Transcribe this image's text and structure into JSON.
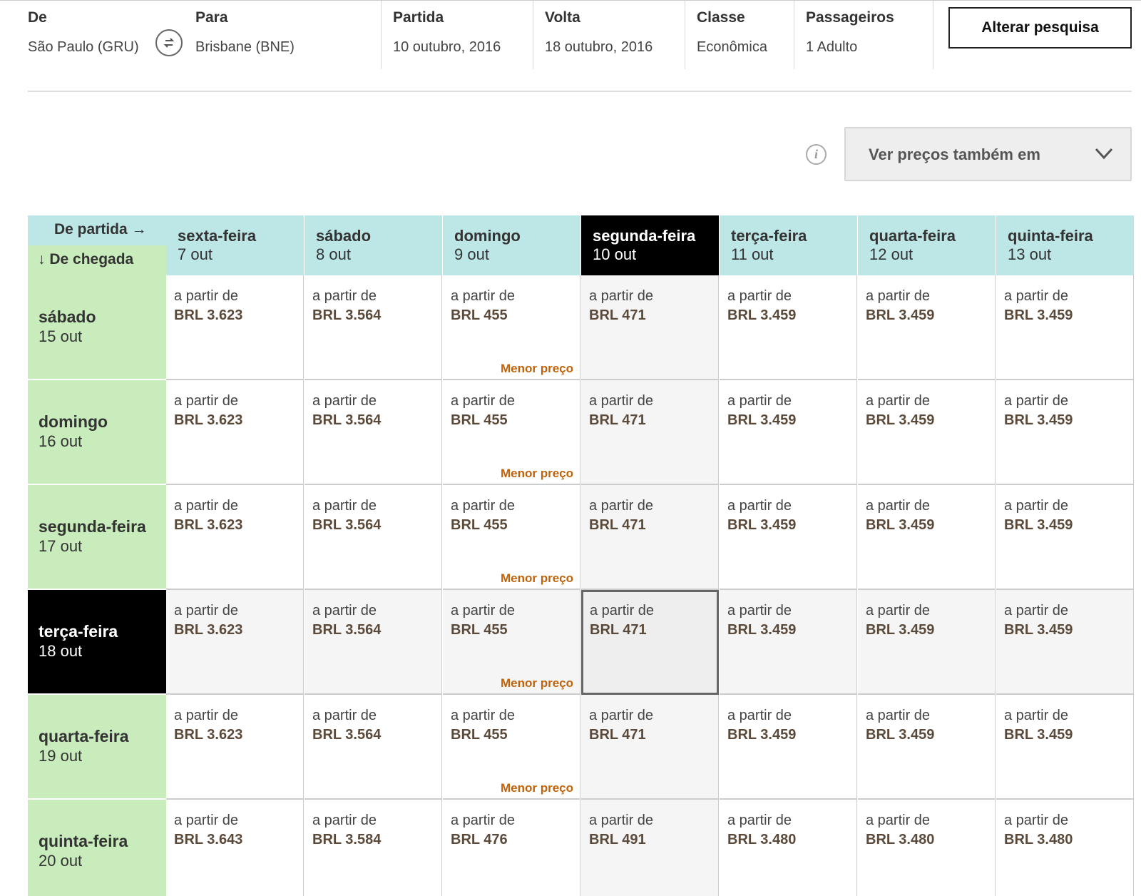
{
  "search": {
    "from_label": "De",
    "from_value": "São Paulo (GRU)",
    "to_label": "Para",
    "to_value": "Brisbane (BNE)",
    "departure_label": "Partida",
    "departure_value": "10 outubro, 2016",
    "return_label": "Volta",
    "return_value": "18 outubro, 2016",
    "class_label": "Classe",
    "class_value": "Econômica",
    "passengers_label": "Passageiros",
    "passengers_value": "1 Adulto",
    "change_button": "Alterar pesquisa"
  },
  "currency": {
    "select_label": "Ver preços também em",
    "info_icon": "info-icon",
    "chevron_icon": "chevron-down-icon"
  },
  "grid": {
    "corner_departure": "De partida →",
    "corner_arrival": "↓ De chegada",
    "price_prefix": "a partir de",
    "lowest_label": "Menor preço",
    "departures": [
      {
        "day": "sexta-feira",
        "date": "7 out"
      },
      {
        "day": "sábado",
        "date": "8 out"
      },
      {
        "day": "domingo",
        "date": "9 out"
      },
      {
        "day": "segunda-feira",
        "date": "10 out",
        "selected": true
      },
      {
        "day": "terça-feira",
        "date": "11 out"
      },
      {
        "day": "quarta-feira",
        "date": "12 out"
      },
      {
        "day": "quinta-feira",
        "date": "13 out"
      }
    ],
    "returns": [
      {
        "day": "sábado",
        "date": "15 out",
        "prices": [
          "BRL 3.623",
          "BRL 3.564",
          "BRL 455",
          "BRL 471",
          "BRL 3.459",
          "BRL 3.459",
          "BRL 3.459"
        ],
        "lowest_col": 2
      },
      {
        "day": "domingo",
        "date": "16 out",
        "prices": [
          "BRL 3.623",
          "BRL 3.564",
          "BRL 455",
          "BRL 471",
          "BRL 3.459",
          "BRL 3.459",
          "BRL 3.459"
        ],
        "lowest_col": 2
      },
      {
        "day": "segunda-feira",
        "date": "17 out",
        "prices": [
          "BRL 3.623",
          "BRL 3.564",
          "BRL 455",
          "BRL 471",
          "BRL 3.459",
          "BRL 3.459",
          "BRL 3.459"
        ],
        "lowest_col": 2
      },
      {
        "day": "terça-feira",
        "date": "18 out",
        "selected": true,
        "prices": [
          "BRL 3.623",
          "BRL 3.564",
          "BRL 455",
          "BRL 471",
          "BRL 3.459",
          "BRL 3.459",
          "BRL 3.459"
        ],
        "lowest_col": 2
      },
      {
        "day": "quarta-feira",
        "date": "19 out",
        "prices": [
          "BRL 3.623",
          "BRL 3.564",
          "BRL 455",
          "BRL 471",
          "BRL 3.459",
          "BRL 3.459",
          "BRL 3.459"
        ],
        "lowest_col": 2
      },
      {
        "day": "quinta-feira",
        "date": "20 out",
        "prices": [
          "BRL 3.643",
          "BRL 3.584",
          "BRL 476",
          "BRL 491",
          "BRL 3.480",
          "BRL 3.480",
          "BRL 3.480"
        ],
        "lowest_col": null
      }
    ]
  }
}
